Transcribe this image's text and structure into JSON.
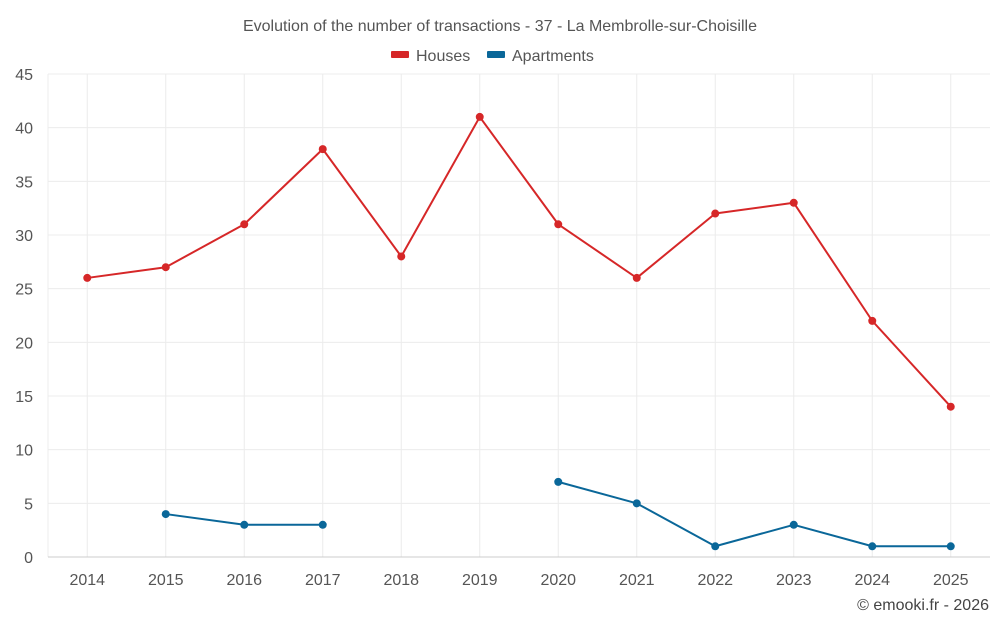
{
  "chart_data": {
    "type": "line",
    "title": "Evolution of the number of transactions - 37 - La Membrolle-sur-Choisille",
    "categories": [
      "2014",
      "2015",
      "2016",
      "2017",
      "2018",
      "2019",
      "2020",
      "2021",
      "2022",
      "2023",
      "2024",
      "2025"
    ],
    "series": [
      {
        "name": "Houses",
        "color": "#d62728",
        "values": [
          26,
          27,
          31,
          38,
          28,
          41,
          31,
          26,
          32,
          33,
          22,
          14
        ]
      },
      {
        "name": "Apartments",
        "color": "#0a6799",
        "values": [
          null,
          4,
          3,
          3,
          null,
          null,
          7,
          5,
          1,
          3,
          1,
          1
        ]
      }
    ],
    "ylim": [
      0,
      45
    ],
    "yticks": [
      0,
      5,
      10,
      15,
      20,
      25,
      30,
      35,
      40,
      45
    ],
    "xlabel": "",
    "ylabel": "",
    "grid": true,
    "legend": "top-center"
  },
  "credit": "© emooki.fr - 2026"
}
